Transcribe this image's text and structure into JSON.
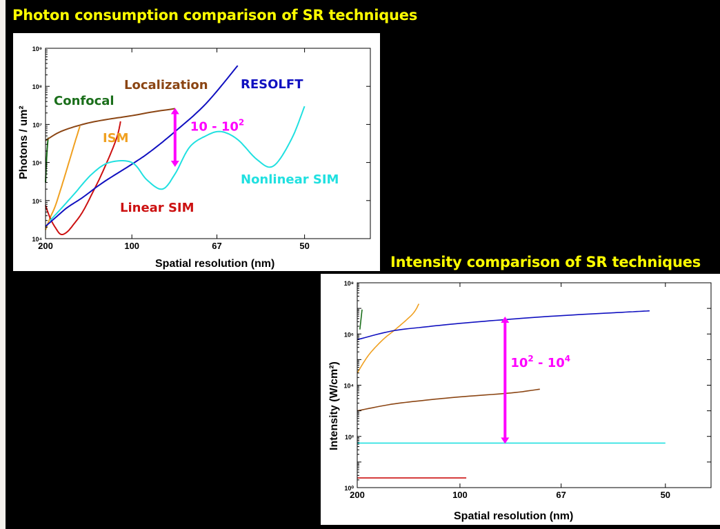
{
  "chart_data": [
    {
      "type": "line",
      "title": "Photon consumption comparison of SR techniques",
      "xlabel": "Spatial resolution (nm)",
      "ylabel": "Photons / um²",
      "x_scale": "reciprocal",
      "y_scale": "log",
      "xlim": [
        200,
        42
      ],
      "ylim": [
        10000,
        1000000000
      ],
      "x_ticks": [
        "200",
        "100",
        "67",
        "50"
      ],
      "y_ticks": [
        "10⁴",
        "10⁵",
        "10⁶",
        "10⁷",
        "10⁸",
        "10⁹"
      ],
      "series": [
        {
          "name": "Confocal",
          "color": "#1a6e1a",
          "x": [
            200,
            198,
            196,
            194
          ],
          "y": [
            300000,
            1000000,
            2500000,
            4500000
          ]
        },
        {
          "name": "Localization",
          "color": "#8b4513",
          "x": [
            200,
            170,
            140,
            120,
            100,
            90,
            80
          ],
          "y": [
            3800000,
            6500000,
            10000000,
            13000000,
            17000000,
            21000000,
            26000000
          ]
        },
        {
          "name": "ISM",
          "color": "#f0a020",
          "x": [
            200,
            190,
            180,
            170,
            160,
            150,
            143
          ],
          "y": [
            17000,
            35000,
            70000,
            200000,
            700000,
            3000000,
            9000000
          ]
        },
        {
          "name": "Linear SIM",
          "color": "#cc1111",
          "x": [
            200,
            190,
            180,
            170,
            160,
            150,
            140,
            130,
            120,
            110,
            107
          ],
          "y": [
            75000,
            35000,
            20000,
            13000,
            15000,
            25000,
            50000,
            150000,
            600000,
            4000000,
            12000000
          ]
        },
        {
          "name": "RESOLFT",
          "color": "#1010c0",
          "x": [
            200,
            180,
            160,
            140,
            120,
            100,
            90,
            80,
            70,
            62
          ],
          "y": [
            21000,
            35000,
            65000,
            120000,
            300000,
            900000,
            2000000,
            6500000,
            35000000,
            350000000
          ]
        },
        {
          "name": "Nonlinear SIM",
          "color": "#20e0e0",
          "x": [
            190,
            170,
            150,
            130,
            115,
            100,
            92,
            85,
            80,
            75,
            70,
            66,
            62,
            58,
            55,
            52,
            50
          ],
          "y": [
            30000,
            60000,
            150000,
            500000,
            1000000,
            1000000,
            350000,
            200000,
            500000,
            2500000,
            5000000,
            6500000,
            4000000,
            1200000,
            800000,
            4000000,
            30000000
          ]
        }
      ],
      "annotations": [
        {
          "label": "10 - 10",
          "sup": "2",
          "color": "#ff00ff",
          "x": 80,
          "y_from": 800000,
          "y_to": 26000000
        }
      ]
    },
    {
      "type": "line",
      "title": "Intensity comparison of SR techniques",
      "xlabel": "Spatial resolution (nm)",
      "ylabel": "Intensity (W/cm²)",
      "x_scale": "reciprocal",
      "y_scale": "log",
      "xlim": [
        200,
        45
      ],
      "ylim": [
        1,
        100000000
      ],
      "x_ticks": [
        "200",
        "100",
        "67",
        "50"
      ],
      "y_ticks": [
        "10⁰",
        "10²",
        "10⁴",
        "10⁶",
        "10⁸"
      ],
      "series": [
        {
          "color": "#1a6e1a",
          "x": [
            195,
            191
          ],
          "y": [
            1500000,
            9000000
          ]
        },
        {
          "color": "#f0a020",
          "x": [
            200,
            180,
            160,
            145,
            130,
            125
          ],
          "y": [
            30000,
            150000,
            600000,
            1600000,
            6000000,
            15000000
          ]
        },
        {
          "color": "#1010c0",
          "x": [
            200,
            150,
            120,
            100,
            80,
            67,
            56,
            52
          ],
          "y": [
            600000,
            1300000,
            1900000,
            2600000,
            3800000,
            5200000,
            7000000,
            8000000
          ]
        },
        {
          "color": "#8b4513",
          "x": [
            200,
            150,
            120,
            100,
            80,
            72
          ],
          "y": [
            1000,
            1800,
            2600,
            3500,
            5000,
            7000
          ]
        },
        {
          "color": "#20e0e0",
          "x": [
            200,
            50
          ],
          "y": [
            55,
            55
          ]
        },
        {
          "color": "#cc1111",
          "x": [
            200,
            97
          ],
          "y": [
            2.4,
            2.4
          ]
        }
      ],
      "annotations": [
        {
          "label": "10",
          "sup": "2",
          "label2": " - 10",
          "sup2": "4",
          "color": "#ff00ff",
          "x": 82,
          "y_from": 55,
          "y_to": 4500000
        }
      ]
    }
  ],
  "labels1": {
    "resolft": "RESOLFT",
    "localization": "Localization",
    "confocal": "Confocal",
    "ism": "ISM",
    "linear_sim": "Linear SIM",
    "nonlinear_sim": "Nonlinear SIM"
  },
  "colors": {
    "title": "#ffff00",
    "annotation": "#ff00ff"
  }
}
